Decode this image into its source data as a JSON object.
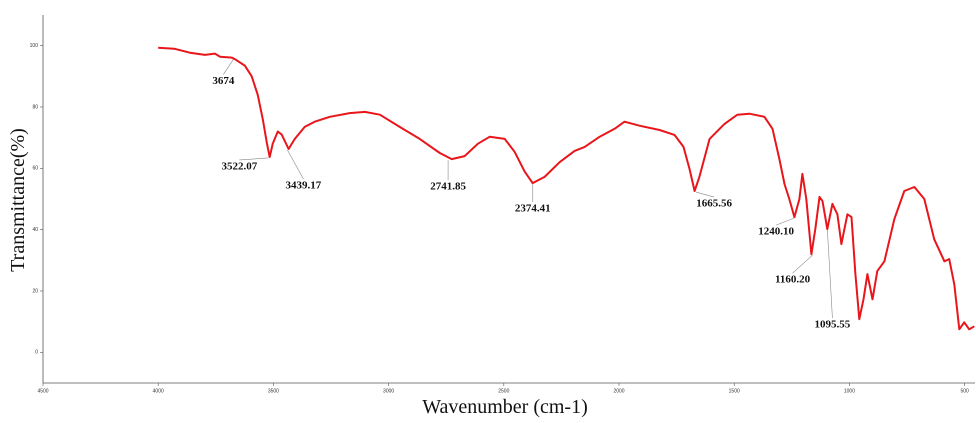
{
  "chart_data": {
    "type": "line",
    "x_label": "Wavenumber (cm-1)",
    "y_label": "Transmittance(%)",
    "xlim": [
      4500,
      455
    ],
    "ylim": [
      -10,
      110
    ],
    "xticks": [
      4500,
      4000,
      3500,
      3000,
      2500,
      2000,
      1500,
      1000,
      500
    ],
    "yticks": [
      0,
      20,
      40,
      60,
      80,
      100
    ],
    "grid": false,
    "x": [
      4000,
      3931,
      3862,
      3797,
      3754,
      3732,
      3680,
      3663,
      3624,
      3594,
      3568,
      3546,
      3528,
      3516,
      3503,
      3481,
      3464,
      3434,
      3407,
      3364,
      3321,
      3255,
      3169,
      3103,
      3038,
      2952,
      2865,
      2778,
      2726,
      2670,
      2613,
      2561,
      2496,
      2453,
      2410,
      2375,
      2323,
      2258,
      2193,
      2149,
      2084,
      2019,
      1976,
      1911,
      1824,
      1759,
      1720,
      1694,
      1672,
      1651,
      1607,
      1542,
      1486,
      1434,
      1369,
      1334,
      1304,
      1282,
      1261,
      1239,
      1217,
      1204,
      1187,
      1165,
      1148,
      1130,
      1117,
      1096,
      1074,
      1052,
      1035,
      1009,
      991,
      974,
      957,
      939,
      922,
      900,
      879,
      848,
      805,
      762,
      718,
      675,
      632,
      588,
      567,
      545,
      523,
      502,
      480,
      458
    ],
    "series": [
      {
        "name": "Transmittance",
        "color": "#e8161b",
        "values": [
          99.3,
          99,
          97.7,
          97,
          97.4,
          96.4,
          96.1,
          95.4,
          93.5,
          90,
          84,
          76,
          68,
          63.7,
          68,
          72,
          71,
          66.3,
          69.6,
          73.5,
          75.2,
          76.8,
          78,
          78.4,
          77.5,
          73.5,
          69.6,
          65,
          63,
          64,
          68,
          70.3,
          69.6,
          65.4,
          59,
          55.2,
          57.2,
          62,
          65.7,
          67,
          70.3,
          72.9,
          75.2,
          73.9,
          72.5,
          70.9,
          67,
          59.8,
          52.6,
          57.2,
          69.6,
          74.5,
          77.5,
          77.8,
          76.8,
          72.9,
          63,
          54.9,
          50,
          44.1,
          50,
          58.2,
          50,
          32,
          40.2,
          50.7,
          49.3,
          40.2,
          48.4,
          45,
          35.3,
          45,
          44.1,
          25.5,
          10.8,
          17.3,
          25.5,
          17.3,
          26.5,
          29.7,
          43.5,
          52.6,
          53.9,
          50,
          36.9,
          29.7,
          30.4,
          22.2,
          7.5,
          9.8,
          7.5,
          8.5
        ]
      }
    ],
    "annotations": [
      {
        "label": "3674",
        "x": 3674,
        "y": 95.8
      },
      {
        "label": "3522.07",
        "x": 3522.07,
        "y": 63.7
      },
      {
        "label": "3439.17",
        "x": 3439.17,
        "y": 66.3
      },
      {
        "label": "2741.85",
        "x": 2741.85,
        "y": 63
      },
      {
        "label": "2374.41",
        "x": 2374.41,
        "y": 55.2
      },
      {
        "label": "1665.56",
        "x": 1665.56,
        "y": 52.6
      },
      {
        "label": "1240.10",
        "x": 1240.1,
        "y": 44.1
      },
      {
        "label": "1160.20",
        "x": 1160.2,
        "y": 32
      },
      {
        "label": "1095.55",
        "x": 1095.55,
        "y": 40.2
      }
    ]
  }
}
